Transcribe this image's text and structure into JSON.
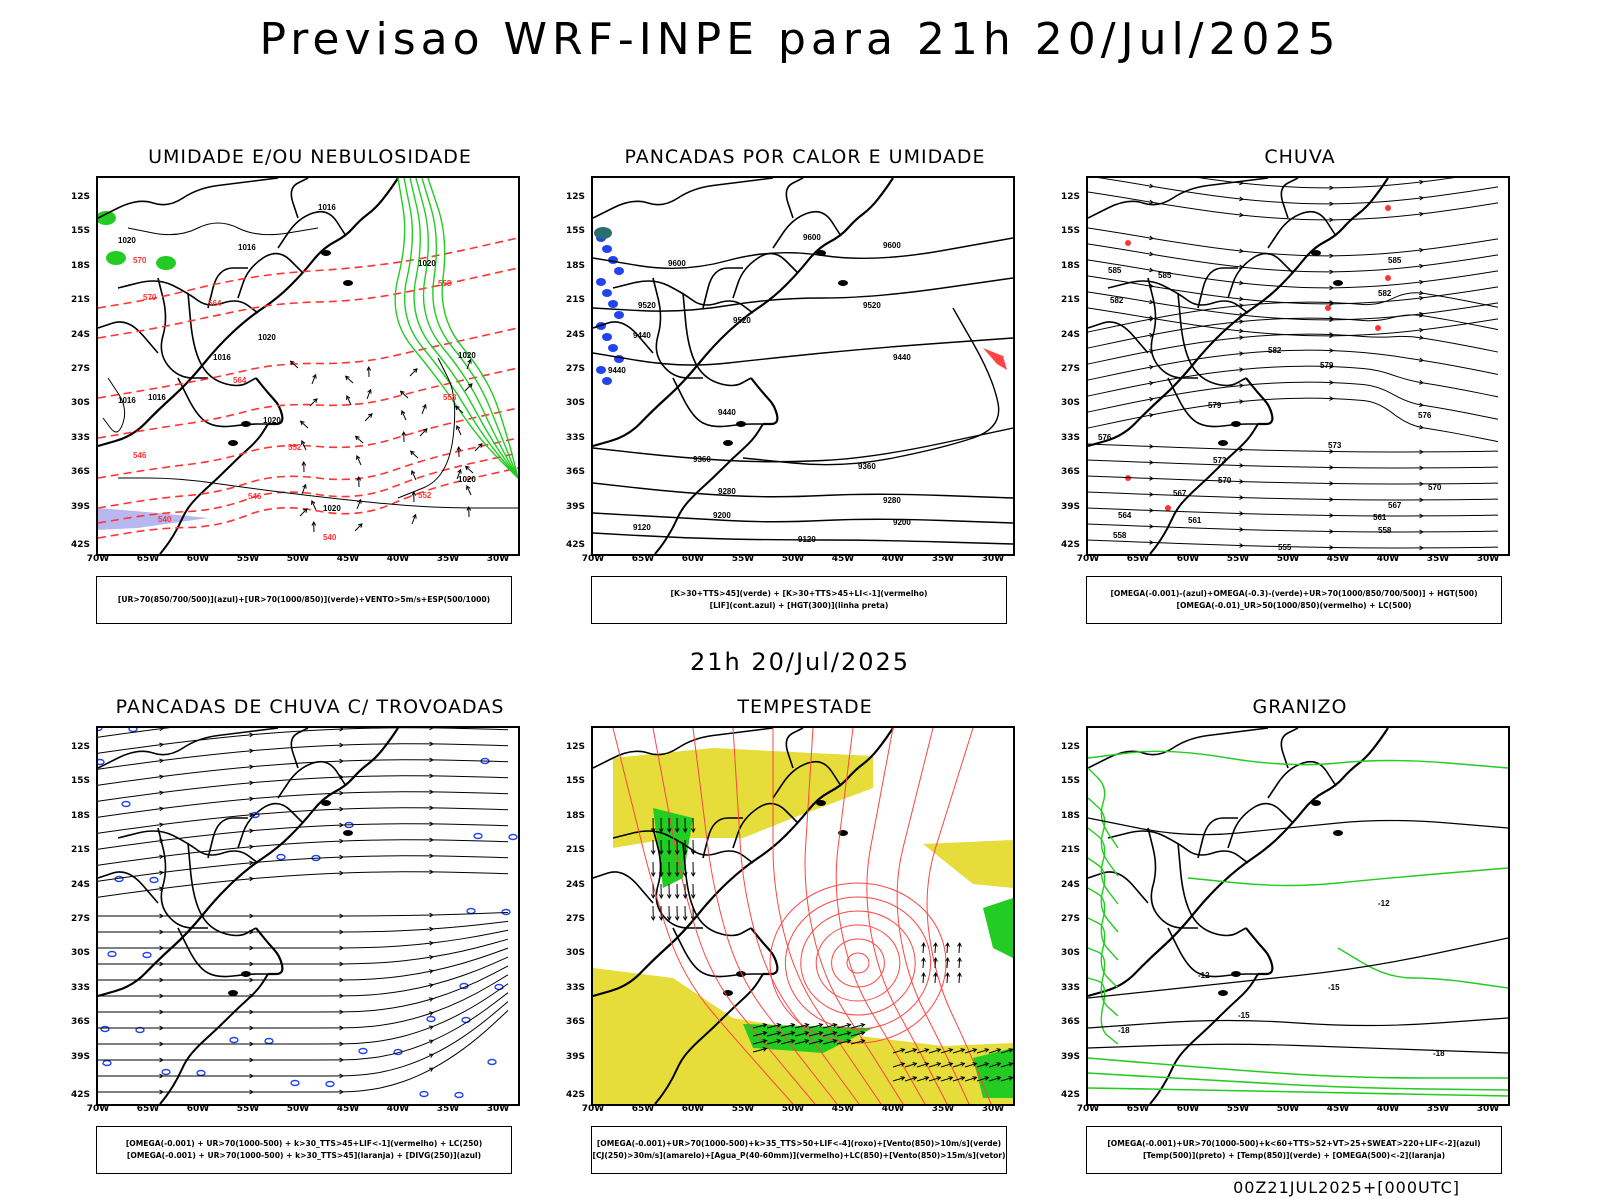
{
  "title": "Previsao WRF-INPE  para 21h 20/Jul/2025",
  "middle_title": "21h 20/Jul/2025",
  "footer": "00Z21JUL2025+[000UTC]",
  "axes": {
    "lat_labels": [
      "12S",
      "15S",
      "18S",
      "21S",
      "24S",
      "27S",
      "30S",
      "33S",
      "36S",
      "39S",
      "42S"
    ],
    "lon_labels": [
      "70W",
      "65W",
      "60W",
      "55W",
      "50W",
      "45W",
      "40W",
      "35W",
      "30W"
    ]
  },
  "panels": [
    {
      "title": "UMIDADE E/OU NEBULOSIDADE",
      "legend": [
        "[UR>70(850/700/500)](azul)+[UR>70(1000/850)](verde)+VENTO>5m/s+ESP(500/1000)"
      ]
    },
    {
      "title": "PANCADAS POR CALOR E UMIDADE",
      "legend": [
        "[K>30+TTS>45](verde) + [K>30+TTS>45+LI<-1](vermelho)",
        "[LIF](cont.azul) + [HGT(300)](linha preta)"
      ]
    },
    {
      "title": "CHUVA",
      "legend": [
        "[OMEGA(-0.001)-(azul)+OMEGA(-0.3)-(verde)+UR>70(1000/850/700/500)] + HGT(500)",
        "[OMEGA(-0.01)_UR>50(1000/850)(vermelho) + LC(500)"
      ]
    },
    {
      "title": "PANCADAS DE CHUVA C/ TROVOADAS",
      "legend": [
        "[OMEGA(-0.001) + UR>70(1000-500) + k>30_TTS>45+LIF<-1](vermelho) + LC(250)",
        "[OMEGA(-0.001) + UR>70(1000-500) + k>30_TTS>45](laranja) + [DIVG(250)](azul)"
      ]
    },
    {
      "title": "TEMPESTADE",
      "legend": [
        "[OMEGA(-0.001)+UR>70(1000-500)+k>35_TTS>50+LIF<-4](roxo)+[Vento(850)>10m/s](verde)",
        "[CJ(250)>30m/s](amarelo)+[Agua_P(40-60mm)](vermelho)+LC(850)+[Vento(850)>15m/s](vetor)"
      ]
    },
    {
      "title": "GRANIZO",
      "legend": [
        "[OMEGA(-0.001)+UR>70(1000-500)+k<60+TTS>52+VT>25+SWEAT>220+LIF<-2](azul)",
        "[Temp(500)](preto) + [Temp(850)](verde) + [OMEGA(500)<-2](laranja)"
      ]
    }
  ],
  "contour_labels": {
    "p1": [
      "1016",
      "1016",
      "1020",
      "1016",
      "1020",
      "1016",
      "1016",
      "1020",
      "1020",
      "1020",
      "1020",
      "1020",
      "570",
      "570",
      "564",
      "564",
      "558",
      "558",
      "552",
      "552",
      "546",
      "546",
      "540",
      "540"
    ],
    "p2": [
      "9600",
      "9600",
      "9600",
      "9520",
      "9520",
      "9520",
      "9440",
      "9440",
      "9440",
      "9440",
      "9360",
      "9360",
      "9280",
      "9280",
      "9200",
      "9200",
      "9120",
      "9120"
    ],
    "p3": [
      "585",
      "585",
      "585",
      "582",
      "582",
      "582",
      "579",
      "579",
      "576",
      "576",
      "573",
      "573",
      "570",
      "570",
      "567",
      "567",
      "564",
      "561",
      "561",
      "558",
      "558",
      "555"
    ],
    "p6": [
      "-12",
      "-12",
      "-15",
      "-15",
      "-18",
      "-18"
    ]
  },
  "colors": {
    "contour_black": "#000000",
    "red_dashed": "#ff3333",
    "green": "#22cc22",
    "blue": "#2244ee",
    "yellow": "#e6dc3a",
    "lavender": "#b8b8f0",
    "red_streamline": "#ff4444"
  }
}
